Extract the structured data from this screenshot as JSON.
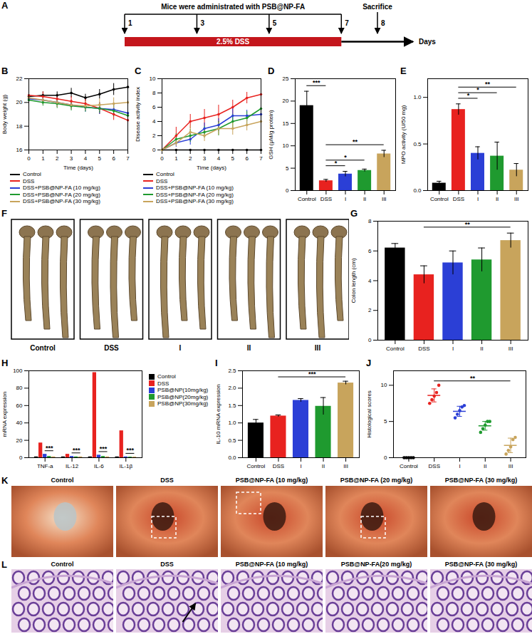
{
  "diagram": {
    "panel": "A",
    "title": "Mice were administrated with PSB@NP-FA",
    "dose_days": [
      1,
      3,
      5,
      7
    ],
    "sacrifice_label": "Sacrifice",
    "sacrifice_day": 8,
    "dss_label": "2.5% DSS",
    "dss_days": [
      1,
      7
    ],
    "axis_label": "Days"
  },
  "chart_data": [
    {
      "panel": "B",
      "type": "line",
      "x_label": "Time (days)",
      "y_label": "Body weight (g)",
      "x": [
        0,
        1,
        2,
        3,
        4,
        5,
        6,
        7
      ],
      "xlim": [
        0,
        7
      ],
      "xticks": [
        0,
        1,
        2,
        3,
        4,
        5,
        6,
        7
      ],
      "ylim": [
        16,
        22
      ],
      "yticks": [
        16,
        18,
        20,
        22
      ],
      "series": [
        {
          "name": "Control",
          "color": "#000000",
          "values": [
            20.5,
            20.6,
            20.6,
            20.8,
            20.4,
            20.7,
            21.1,
            21.3
          ],
          "error": [
            0.3,
            0.3,
            0.3,
            0.4,
            0.3,
            0.4,
            0.5,
            0.6
          ]
        },
        {
          "name": "DSS",
          "color": "#e8221f",
          "values": [
            20.6,
            20.5,
            20.3,
            20.1,
            19.9,
            19.5,
            19.0,
            18.5
          ],
          "error": [
            0.3,
            0.4,
            0.3,
            0.4,
            0.4,
            0.5,
            0.5,
            0.6
          ]
        },
        {
          "name": "DSS+PSB@NP-FA (10 mg/kg)",
          "color": "#2b3fd6",
          "values": [
            20.3,
            20.2,
            20.0,
            19.8,
            19.6,
            19.5,
            19.4,
            19.1
          ],
          "error": [
            0.3,
            0.4,
            0.4,
            0.4,
            0.4,
            0.5,
            0.5,
            0.6
          ]
        },
        {
          "name": "DSS+PSB@NP-FA (20 mg/kg)",
          "color": "#1f9a2f",
          "values": [
            20.2,
            20.0,
            19.9,
            19.7,
            19.6,
            19.5,
            19.3,
            18.9
          ],
          "error": [
            0.3,
            0.3,
            0.4,
            0.4,
            0.4,
            0.4,
            0.5,
            0.5
          ]
        },
        {
          "name": "DSS+PSB@NP-FA (30 mg/kg)",
          "color": "#c8a45c",
          "values": [
            20.4,
            20.2,
            20.0,
            19.8,
            19.7,
            19.8,
            19.9,
            20.0
          ],
          "error": [
            0.4,
            0.4,
            0.4,
            0.4,
            0.4,
            0.5,
            0.5,
            0.6
          ]
        }
      ]
    },
    {
      "panel": "C",
      "type": "line",
      "x_label": "Time (days)",
      "y_label": "Disease activity index",
      "x": [
        0,
        1,
        2,
        3,
        4,
        5,
        6,
        7
      ],
      "xlim": [
        0,
        7
      ],
      "xticks": [
        0,
        1,
        2,
        3,
        4,
        5,
        6,
        7
      ],
      "ylim": [
        0,
        10
      ],
      "yticks": [
        0,
        2,
        4,
        6,
        8,
        10
      ],
      "series": [
        {
          "name": "Control",
          "color": "#000000",
          "values": [
            0,
            0,
            0,
            0,
            0,
            0,
            0,
            0
          ],
          "error": [
            0,
            0,
            0,
            0,
            0,
            0,
            0,
            0
          ]
        },
        {
          "name": "DSS",
          "color": "#e8221f",
          "values": [
            0,
            2.0,
            4.0,
            4.5,
            5.0,
            6.0,
            7.3,
            7.8
          ],
          "error": [
            0,
            1.2,
            1.0,
            1.2,
            1.3,
            1.0,
            0.8,
            0.6
          ]
        },
        {
          "name": "DSS+PSB@NP-FA (10 mg/kg)",
          "color": "#2b3fd6",
          "values": [
            0,
            1.0,
            1.5,
            3.0,
            3.5,
            4.8,
            4.8,
            5.0
          ],
          "error": [
            0,
            0.6,
            0.8,
            0.8,
            0.9,
            1.0,
            0.8,
            0.7
          ]
        },
        {
          "name": "DSS+PSB@NP-FA (20 mg/kg)",
          "color": "#1f9a2f",
          "values": [
            0,
            1.5,
            2.0,
            2.5,
            3.0,
            4.0,
            4.5,
            5.8
          ],
          "error": [
            0,
            0.8,
            0.9,
            0.8,
            1.0,
            1.0,
            0.9,
            0.8
          ]
        },
        {
          "name": "DSS+PSB@NP-FA (30 mg/kg)",
          "color": "#c8a45c",
          "values": [
            0,
            1.0,
            2.5,
            2.0,
            3.0,
            3.0,
            3.5,
            4.0
          ],
          "error": [
            0,
            0.5,
            0.9,
            0.8,
            0.9,
            0.9,
            0.8,
            0.7
          ]
        }
      ]
    },
    {
      "panel": "D",
      "type": "bar",
      "y_label": "GSH (μM/g protein)",
      "categories": [
        "Control",
        "DSS",
        "I",
        "II",
        "III"
      ],
      "values": [
        19.0,
        2.2,
        3.7,
        4.5,
        8.2
      ],
      "error": [
        3.2,
        0.3,
        0.6,
        0.3,
        0.8
      ],
      "colors": [
        "#000000",
        "#e8221f",
        "#2b3fd6",
        "#1f9a2f",
        "#c8a45c"
      ],
      "ylim": [
        0,
        25
      ],
      "yticks": [
        0,
        5,
        10,
        15,
        20,
        25
      ],
      "annotations": [
        {
          "from": "Control",
          "to": "DSS",
          "label": "***"
        },
        {
          "from": "DSS",
          "to": "I",
          "label": "*"
        },
        {
          "from": "DSS",
          "to": "II",
          "label": "*"
        },
        {
          "from": "DSS",
          "to": "III",
          "label": "**"
        }
      ]
    },
    {
      "panel": "E",
      "type": "bar",
      "y_label": "MPO activity (U/50 mg)",
      "categories": [
        "Control",
        "DSS",
        "I",
        "II",
        "III"
      ],
      "values": [
        0.08,
        0.87,
        0.4,
        0.37,
        0.22
      ],
      "error": [
        0.02,
        0.06,
        0.07,
        0.15,
        0.07
      ],
      "colors": [
        "#000000",
        "#e8221f",
        "#2b3fd6",
        "#1f9a2f",
        "#c8a45c"
      ],
      "ylim": [
        0,
        1.2
      ],
      "yticks": [
        {
          "value": 0,
          "label": "0.0"
        },
        0.5,
        {
          "value": 1,
          "label": "1.0"
        }
      ],
      "annotations": [
        {
          "from": "DSS",
          "to": "I",
          "label": "*"
        },
        {
          "from": "DSS",
          "to": "II",
          "label": "*"
        },
        {
          "from": "DSS",
          "to": "III",
          "label": "**"
        }
      ]
    },
    {
      "panel": "G",
      "type": "bar",
      "y_label": "Colon length (cm)",
      "categories": [
        "Control",
        "DSS",
        "I",
        "II",
        "III"
      ],
      "values": [
        6.2,
        4.4,
        5.2,
        5.4,
        6.7
      ],
      "error": [
        0.3,
        0.6,
        0.8,
        0.8,
        0.5
      ],
      "colors": [
        "#000000",
        "#e8221f",
        "#2b3fd6",
        "#1f9a2f",
        "#c8a45c"
      ],
      "ylim": [
        0,
        8
      ],
      "yticks": [
        0,
        2,
        4,
        6,
        8
      ],
      "annotations": [
        {
          "from": "DSS",
          "to": "III",
          "label": "**"
        }
      ]
    },
    {
      "panel": "H",
      "type": "grouped_bar",
      "y_label": "mRNA expression",
      "categories": [
        "TNF-a",
        "IL-12",
        "IL-6",
        "IL-1β"
      ],
      "ylim": [
        0,
        100
      ],
      "yticks": [
        0,
        20,
        40,
        60,
        80,
        100
      ],
      "series": [
        {
          "name": "Control",
          "color": "#000000",
          "values": [
            1,
            1,
            1,
            1
          ]
        },
        {
          "name": "DSS",
          "color": "#e8221f",
          "values": [
            17,
            4,
            98,
            31
          ]
        },
        {
          "name": "PSB@NP(10mg/kg)",
          "color": "#2b3fd6",
          "values": [
            4,
            1.5,
            3,
            1
          ]
        },
        {
          "name": "PSB@NP(20mg/kg)",
          "color": "#1f9a2f",
          "values": [
            1.5,
            1,
            1.5,
            0.8
          ]
        },
        {
          "name": "PSB@NP(30mg/kg)",
          "color": "#c8a45c",
          "values": [
            1,
            1,
            1,
            0.8
          ]
        }
      ],
      "annotations": [
        {
          "category": "TNF-a",
          "from": "PSB@NP(10mg/kg)",
          "to": "PSB@NP(30mg/kg)",
          "label": "***"
        },
        {
          "category": "IL-12",
          "from": "PSB@NP(10mg/kg)",
          "to": "PSB@NP(30mg/kg)",
          "label": "***"
        },
        {
          "category": "IL-6",
          "from": "PSB@NP(10mg/kg)",
          "to": "PSB@NP(30mg/kg)",
          "label": "***"
        },
        {
          "category": "IL-1β",
          "from": "PSB@NP(10mg/kg)",
          "to": "PSB@NP(30mg/kg)",
          "label": "***"
        }
      ]
    },
    {
      "panel": "I",
      "type": "bar",
      "y_label": "IL-10 mRNA expression",
      "categories": [
        "Control",
        "DSS",
        "I",
        "II",
        "III"
      ],
      "values": [
        1.0,
        1.2,
        1.65,
        1.48,
        2.15
      ],
      "error": [
        0.1,
        0.03,
        0.05,
        0.25,
        0.05
      ],
      "colors": [
        "#000000",
        "#e8221f",
        "#2b3fd6",
        "#1f9a2f",
        "#c8a45c"
      ],
      "ylim": [
        0,
        2.5
      ],
      "yticks": [
        {
          "value": 0,
          "label": "0.0"
        },
        0.5,
        {
          "value": 1,
          "label": "1.0"
        },
        1.5,
        {
          "value": 2,
          "label": "2.0"
        },
        2.5
      ],
      "annotations": [
        {
          "from": "DSS",
          "to": "III",
          "label": "***"
        }
      ]
    },
    {
      "panel": "J",
      "type": "scatter",
      "y_label": "Histological scores",
      "categories": [
        "Control",
        "DSS",
        "I",
        "II",
        "III"
      ],
      "points": [
        [
          0,
          0,
          0,
          0,
          0
        ],
        [
          7.5,
          8,
          8.5,
          9,
          10
        ],
        [
          5.5,
          6,
          6.5,
          7,
          7.2
        ],
        [
          3.5,
          4,
          4.5,
          5,
          5
        ],
        [
          0.5,
          1,
          1.5,
          2.5,
          2.8
        ]
      ],
      "mean": [
        0,
        8.6,
        6.4,
        4.4,
        1.7
      ],
      "error": [
        0,
        0.9,
        0.7,
        0.6,
        1.0
      ],
      "colors": [
        "#000000",
        "#e8221f",
        "#2b3fd6",
        "#1f9a2f",
        "#c8a45c"
      ],
      "ylim": [
        0,
        12
      ],
      "yticks": [
        0,
        5,
        10
      ],
      "annotations": [
        {
          "from": "DSS",
          "to": "III",
          "label": "**"
        }
      ]
    }
  ],
  "images": [
    {
      "panel": "F",
      "labels": [
        "Control",
        "DSS",
        "I",
        "II",
        "III"
      ]
    },
    {
      "panel": "K",
      "labels": [
        "Control",
        "DSS",
        "PSB@NP-FA (10 mg/kg)",
        "PSB@NP-FA (20 mg/kg)",
        "PSB@NP-FA (30 mg/kg)"
      ],
      "boxed": [
        false,
        true,
        true,
        true,
        false
      ]
    },
    {
      "panel": "L",
      "labels": [
        "Control",
        "DSS",
        "PSB@NP-FA (10 mg/kg)",
        "PSB@NP-FA(20 mg/kg)",
        "PSB@NP-FA (30 mg/kg)"
      ],
      "arrow": [
        false,
        true,
        false,
        false,
        false
      ]
    }
  ]
}
